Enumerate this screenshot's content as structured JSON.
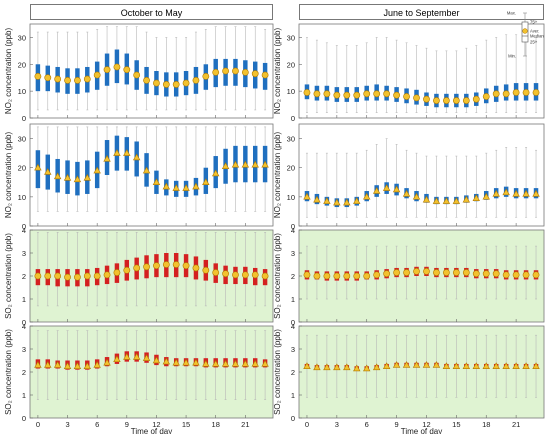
{
  "columns": [
    {
      "title": "October to May"
    },
    {
      "title": "June to September"
    }
  ],
  "rows": [
    {
      "ylabel": "NO₂ concentration (ppb)",
      "ylim": [
        0,
        35
      ],
      "yticks": [
        0,
        10,
        20,
        30
      ],
      "background": "#ffffff"
    },
    {
      "ylabel": "NO₂ concentration (ppb)",
      "ylim": [
        0,
        35
      ],
      "yticks": [
        0,
        10,
        20,
        30
      ],
      "background": "#ffffff"
    },
    {
      "ylabel": "SO₂ concentration (ppb)",
      "ylim": [
        0,
        4
      ],
      "yticks": [
        0,
        1,
        2,
        3,
        4
      ],
      "background": "#dff3d2"
    },
    {
      "ylabel": "SO₂ concentration (ppb)",
      "ylim": [
        0,
        4
      ],
      "yticks": [
        0,
        1,
        2,
        3,
        4
      ],
      "background": "#dff3d2"
    }
  ],
  "xaxis": {
    "label": "Time of day",
    "ticks": [
      0,
      3,
      6,
      9,
      12,
      15,
      18,
      21
    ],
    "range": [
      -0.8,
      23.8
    ]
  },
  "legend": {
    "panel": "row 1, June to September",
    "labels": [
      "Max.",
      "75ᵗʰ",
      "Aver.",
      "Median",
      "25ᵗʰ",
      "Min."
    ]
  },
  "colors": {
    "no2_box": "#1f6fbf",
    "so2_box": "#d42020",
    "whisker": "#b8b8b8",
    "marker_fill": "#f2c12e",
    "marker_edge": "#b07800"
  },
  "chart_data": [
    {
      "type": "box",
      "panel": "NO₂ October to May (panel a)",
      "marker": "circle",
      "hours": [
        0,
        1,
        2,
        3,
        4,
        5,
        6,
        7,
        8,
        9,
        10,
        11,
        12,
        13,
        14,
        15,
        16,
        17,
        18,
        19,
        20,
        21,
        22,
        23
      ],
      "mean": [
        15.5,
        15,
        14.5,
        14,
        14,
        14.5,
        16,
        18,
        19,
        18,
        16,
        14,
        13,
        12.5,
        12.5,
        13,
        14,
        15.5,
        17,
        17.5,
        17.5,
        17,
        16.5,
        16
      ],
      "q1": [
        10,
        10,
        9.5,
        9,
        9,
        9.5,
        10.5,
        12,
        13,
        12.5,
        10.5,
        9,
        8.5,
        8,
        8,
        8.5,
        9,
        10.5,
        11.5,
        12,
        12,
        11.5,
        11,
        10.5
      ],
      "q3": [
        20,
        19.5,
        19,
        18.5,
        18.5,
        19,
        21,
        24,
        25.5,
        24,
        21.5,
        19,
        17.5,
        17,
        17,
        17.5,
        19,
        20,
        22,
        22,
        22,
        21.5,
        21,
        20.5
      ],
      "min": [
        3,
        3,
        3,
        3,
        3,
        3,
        3,
        3,
        3,
        3,
        3,
        3,
        3,
        3,
        3,
        3,
        3,
        3,
        3,
        3,
        3,
        3,
        3,
        3
      ],
      "max": [
        32,
        32,
        32,
        32,
        32,
        32,
        33,
        34,
        34,
        34,
        34,
        32,
        30,
        30,
        30,
        30,
        32,
        33,
        34,
        34,
        34,
        34,
        34,
        33
      ]
    },
    {
      "type": "box",
      "panel": "NO₂ June to September (panel b)",
      "marker": "circle",
      "hours": [
        0,
        1,
        2,
        3,
        4,
        5,
        6,
        7,
        8,
        9,
        10,
        11,
        12,
        13,
        14,
        15,
        16,
        17,
        18,
        19,
        20,
        21,
        22,
        23
      ],
      "mean": [
        9.5,
        9,
        9,
        8.5,
        8.5,
        8.5,
        9,
        9,
        9,
        8.5,
        8,
        7.5,
        7,
        6.5,
        6.5,
        6.5,
        6.5,
        7,
        8,
        9,
        9,
        9.5,
        9.5,
        9.5
      ],
      "q1": [
        7,
        6.5,
        6.5,
        6,
        6,
        6,
        6.5,
        6.5,
        6.5,
        6,
        5.5,
        5,
        4.5,
        4,
        4,
        4,
        4,
        4.5,
        5.5,
        6,
        6.5,
        6.5,
        6.5,
        6.5
      ],
      "q3": [
        12.5,
        12,
        12,
        11.5,
        11.5,
        11.5,
        12,
        12.5,
        12,
        11.5,
        11,
        10.5,
        9.5,
        9,
        9,
        9,
        9,
        9.5,
        11,
        12,
        12.5,
        13,
        13,
        13
      ],
      "min": [
        2,
        2,
        2,
        2,
        2,
        2,
        2,
        2,
        2,
        2,
        2,
        2,
        2,
        2,
        2,
        2,
        2,
        2,
        2,
        2,
        2,
        2,
        2,
        2
      ],
      "max": [
        30,
        29,
        28,
        27,
        27,
        27,
        28,
        30,
        30,
        29,
        28,
        27,
        26,
        25,
        25,
        25,
        26,
        27,
        29,
        30,
        31,
        31,
        31,
        30
      ]
    },
    {
      "type": "box",
      "panel": "NO₂ October to May (panel c)",
      "marker": "triangle",
      "hours": [
        0,
        1,
        2,
        3,
        4,
        5,
        6,
        7,
        8,
        9,
        10,
        11,
        12,
        13,
        14,
        15,
        16,
        17,
        18,
        19,
        20,
        21,
        22,
        23
      ],
      "mean": [
        20,
        18.5,
        17,
        16.5,
        16,
        16.5,
        19,
        23,
        25,
        25,
        23.5,
        19,
        15,
        13.5,
        13,
        13,
        13.5,
        15,
        18,
        20.5,
        21,
        21,
        21,
        21
      ],
      "q1": [
        13,
        12.5,
        11.5,
        11,
        10.5,
        11,
        13,
        17.5,
        19,
        19,
        17,
        13.5,
        11,
        10.5,
        10,
        10,
        10.5,
        11,
        13,
        14.5,
        15,
        15,
        15,
        15
      ],
      "q3": [
        26,
        24.5,
        23,
        22.5,
        22,
        22.5,
        25.5,
        29.5,
        31,
        30.5,
        29,
        25,
        19,
        16,
        15.5,
        15.5,
        16.5,
        20,
        24,
        26.5,
        27.5,
        27.5,
        27.5,
        27.5
      ],
      "min": [
        5,
        5,
        5,
        5,
        5,
        5,
        5,
        5,
        5,
        5,
        5,
        5,
        5,
        5,
        5,
        5,
        5,
        5,
        5,
        5,
        5,
        5,
        5,
        5
      ],
      "max": [
        34,
        34,
        34,
        34,
        34,
        34,
        34,
        34,
        34,
        34,
        34,
        34,
        34,
        34,
        34,
        34,
        34,
        34,
        34,
        34,
        34,
        34,
        34,
        34
      ]
    },
    {
      "type": "box",
      "panel": "NO₂ June to September (panel d)",
      "marker": "triangle",
      "hours": [
        0,
        1,
        2,
        3,
        4,
        5,
        6,
        7,
        8,
        9,
        10,
        11,
        12,
        13,
        14,
        15,
        16,
        17,
        18,
        19,
        20,
        21,
        22,
        23
      ],
      "mean": [
        10,
        9,
        8.5,
        8,
        8,
        8.5,
        10,
        12,
        13,
        12.5,
        11,
        10,
        9,
        8.5,
        8.5,
        8.5,
        9,
        9.5,
        10,
        11,
        11.5,
        11,
        11,
        11
      ],
      "q1": [
        8.5,
        7.5,
        7,
        6.5,
        6.5,
        7,
        8.5,
        10,
        11,
        10.5,
        9.5,
        8.5,
        8,
        7.5,
        7.5,
        7.5,
        8,
        8.5,
        9,
        9.5,
        10,
        9.5,
        9.5,
        9.5
      ],
      "q3": [
        12,
        11,
        10,
        9.5,
        9.5,
        10,
        12,
        14,
        15,
        14.5,
        13,
        12,
        11,
        10,
        10,
        10,
        10.5,
        11,
        12,
        13,
        13.5,
        13,
        13,
        13
      ],
      "min": [
        3,
        3,
        3,
        3,
        3,
        3,
        3,
        3,
        3,
        3,
        3,
        3,
        3,
        3,
        3,
        3,
        3,
        3,
        3,
        3,
        3,
        3,
        3,
        3
      ],
      "max": [
        25,
        25,
        25,
        25,
        25,
        25,
        26,
        28,
        30,
        28,
        26,
        25,
        24,
        24,
        24,
        24,
        24,
        24,
        25,
        26,
        27,
        27,
        27,
        26
      ]
    },
    {
      "type": "box",
      "panel": "SO₂ October to May (panel e)",
      "marker": "circle",
      "hours": [
        0,
        1,
        2,
        3,
        4,
        5,
        6,
        7,
        8,
        9,
        10,
        11,
        12,
        13,
        14,
        15,
        16,
        17,
        18,
        19,
        20,
        21,
        22,
        23
      ],
      "mean": [
        2,
        2,
        2,
        1.95,
        1.95,
        2,
        2,
        2.05,
        2.15,
        2.25,
        2.35,
        2.4,
        2.45,
        2.5,
        2.5,
        2.45,
        2.35,
        2.25,
        2.15,
        2.1,
        2.05,
        2.05,
        2.05,
        2
      ],
      "q1": [
        1.6,
        1.6,
        1.55,
        1.55,
        1.55,
        1.55,
        1.6,
        1.65,
        1.7,
        1.8,
        1.85,
        1.9,
        1.95,
        1.95,
        1.95,
        1.95,
        1.85,
        1.8,
        1.7,
        1.65,
        1.65,
        1.65,
        1.6,
        1.6
      ],
      "q3": [
        2.3,
        2.3,
        2.3,
        2.3,
        2.3,
        2.3,
        2.35,
        2.45,
        2.55,
        2.7,
        2.8,
        2.9,
        2.95,
        3,
        3,
        2.95,
        2.85,
        2.7,
        2.55,
        2.45,
        2.4,
        2.4,
        2.35,
        2.3
      ],
      "min": [
        0.7,
        0.7,
        0.7,
        0.7,
        0.7,
        0.7,
        0.7,
        0.7,
        0.7,
        0.7,
        0.7,
        0.7,
        0.7,
        0.7,
        0.7,
        0.7,
        0.7,
        0.7,
        0.7,
        0.7,
        0.7,
        0.7,
        0.7,
        0.7
      ],
      "max": [
        3.9,
        3.9,
        3.9,
        3.9,
        3.9,
        3.9,
        3.9,
        3.9,
        3.9,
        3.9,
        3.9,
        3.9,
        3.9,
        3.9,
        3.9,
        3.9,
        3.9,
        3.9,
        3.9,
        3.9,
        3.9,
        3.9,
        3.9,
        3.9
      ]
    },
    {
      "type": "box",
      "panel": "SO₂ June to September (panel f)",
      "marker": "circle",
      "hours": [
        0,
        1,
        2,
        3,
        4,
        5,
        6,
        7,
        8,
        9,
        10,
        11,
        12,
        13,
        14,
        15,
        16,
        17,
        18,
        19,
        20,
        21,
        22,
        23
      ],
      "mean": [
        2.05,
        2,
        2,
        2,
        2,
        2,
        2,
        2.05,
        2.1,
        2.15,
        2.15,
        2.2,
        2.2,
        2.15,
        2.15,
        2.15,
        2.15,
        2.1,
        2.1,
        2.1,
        2.05,
        2.05,
        2.05,
        2.05
      ],
      "q1": [
        1.85,
        1.85,
        1.8,
        1.8,
        1.8,
        1.8,
        1.85,
        1.85,
        1.9,
        1.95,
        1.95,
        2,
        2,
        1.95,
        1.95,
        1.95,
        1.95,
        1.9,
        1.9,
        1.9,
        1.85,
        1.85,
        1.85,
        1.85
      ],
      "q3": [
        2.25,
        2.2,
        2.2,
        2.2,
        2.2,
        2.2,
        2.2,
        2.25,
        2.3,
        2.35,
        2.35,
        2.4,
        2.4,
        2.35,
        2.35,
        2.35,
        2.35,
        2.3,
        2.3,
        2.3,
        2.25,
        2.25,
        2.25,
        2.25
      ],
      "min": [
        1,
        1,
        1,
        1,
        1,
        1,
        1,
        1,
        1,
        1,
        1,
        1,
        1,
        1,
        1,
        1,
        1,
        1,
        1,
        1,
        1,
        1,
        1,
        1
      ],
      "max": [
        3.3,
        3.3,
        3.3,
        3.3,
        3.3,
        3.3,
        3.3,
        3.3,
        3.3,
        3.3,
        3.3,
        3.3,
        3.3,
        3.3,
        3.3,
        3.3,
        3.3,
        3.3,
        3.3,
        3.3,
        3.3,
        3.3,
        3.3,
        3.3
      ]
    },
    {
      "type": "box",
      "panel": "SO₂ October to May (panel g)",
      "marker": "triangle",
      "hours": [
        0,
        1,
        2,
        3,
        4,
        5,
        6,
        7,
        8,
        9,
        10,
        11,
        12,
        13,
        14,
        15,
        16,
        17,
        18,
        19,
        20,
        21,
        22,
        23
      ],
      "mean": [
        2.3,
        2.3,
        2.3,
        2.25,
        2.25,
        2.25,
        2.3,
        2.4,
        2.55,
        2.65,
        2.65,
        2.6,
        2.5,
        2.45,
        2.4,
        2.4,
        2.4,
        2.35,
        2.35,
        2.35,
        2.35,
        2.35,
        2.35,
        2.35
      ],
      "q1": [
        2.15,
        2.15,
        2.15,
        2.1,
        2.1,
        2.1,
        2.15,
        2.25,
        2.35,
        2.45,
        2.45,
        2.4,
        2.3,
        2.25,
        2.25,
        2.25,
        2.25,
        2.2,
        2.2,
        2.2,
        2.2,
        2.2,
        2.2,
        2.2
      ],
      "q3": [
        2.55,
        2.55,
        2.5,
        2.5,
        2.5,
        2.5,
        2.55,
        2.65,
        2.8,
        2.9,
        2.9,
        2.85,
        2.75,
        2.65,
        2.6,
        2.6,
        2.6,
        2.6,
        2.6,
        2.6,
        2.6,
        2.6,
        2.6,
        2.55
      ],
      "min": [
        0.8,
        0.8,
        0.8,
        0.8,
        0.8,
        0.8,
        0.8,
        0.8,
        0.8,
        0.8,
        0.8,
        0.8,
        0.8,
        0.8,
        0.8,
        0.8,
        0.8,
        0.8,
        0.8,
        0.8,
        0.8,
        0.8,
        0.8,
        0.8
      ],
      "max": [
        3.8,
        3.8,
        3.8,
        3.8,
        3.8,
        3.8,
        3.8,
        3.8,
        3.8,
        3.8,
        3.8,
        3.8,
        3.8,
        3.8,
        3.8,
        3.8,
        3.8,
        3.8,
        3.8,
        3.8,
        3.8,
        3.8,
        3.8,
        3.8
      ]
    },
    {
      "type": "box",
      "panel": "SO₂ June to September (panel h)",
      "marker": "triangle",
      "hours": [
        0,
        1,
        2,
        3,
        4,
        5,
        6,
        7,
        8,
        9,
        10,
        11,
        12,
        13,
        14,
        15,
        16,
        17,
        18,
        19,
        20,
        21,
        22,
        23
      ],
      "mean": [
        2.25,
        2.2,
        2.2,
        2.2,
        2.2,
        2.15,
        2.15,
        2.2,
        2.25,
        2.3,
        2.3,
        2.3,
        2.3,
        2.3,
        2.25,
        2.25,
        2.25,
        2.25,
        2.25,
        2.25,
        2.25,
        2.25,
        2.25,
        2.25
      ],
      "q1": [
        2.15,
        2.1,
        2.1,
        2.1,
        2.1,
        2.05,
        2.05,
        2.1,
        2.15,
        2.2,
        2.2,
        2.2,
        2.2,
        2.2,
        2.15,
        2.15,
        2.15,
        2.15,
        2.15,
        2.15,
        2.15,
        2.15,
        2.15,
        2.15
      ],
      "q3": [
        2.35,
        2.3,
        2.3,
        2.3,
        2.3,
        2.25,
        2.25,
        2.3,
        2.35,
        2.4,
        2.4,
        2.4,
        2.4,
        2.4,
        2.35,
        2.35,
        2.35,
        2.35,
        2.35,
        2.35,
        2.35,
        2.35,
        2.35,
        2.35
      ],
      "min": [
        0.9,
        0.9,
        0.9,
        0.9,
        0.9,
        0.9,
        0.9,
        0.9,
        0.9,
        0.9,
        0.9,
        0.9,
        0.9,
        0.9,
        0.9,
        0.9,
        0.9,
        0.9,
        0.9,
        0.9,
        0.9,
        0.9,
        0.9,
        0.9
      ],
      "max": [
        3.6,
        3.6,
        3.6,
        3.6,
        3.6,
        3.6,
        3.6,
        3.6,
        3.6,
        3.6,
        3.6,
        3.6,
        3.6,
        3.6,
        3.6,
        3.6,
        3.6,
        3.6,
        3.6,
        3.6,
        3.6,
        3.6,
        3.6,
        3.6
      ]
    }
  ]
}
